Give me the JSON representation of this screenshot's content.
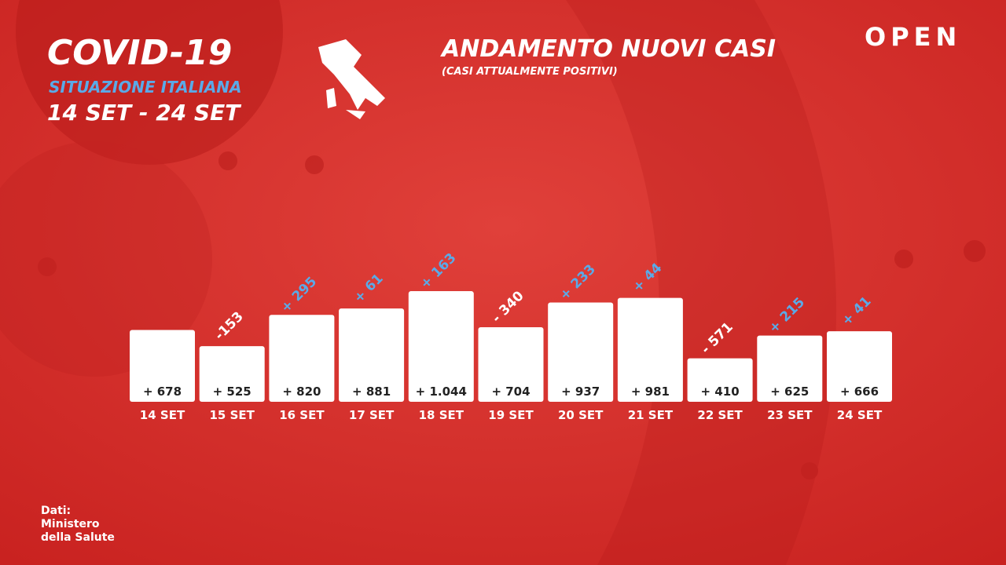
{
  "chart_data": {
    "type": "bar",
    "title": "ANDAMENTO NUOVI CASI",
    "subtitle": "(CASI ATTUALMENTE POSITIVI)",
    "header": {
      "title": "COVID-19",
      "subtitle": "SITUAZIONE ITALIANA",
      "period": "14 SET - 24 SET"
    },
    "brand": "OPEN",
    "source": [
      "Dati:",
      "Ministero",
      "della Salute"
    ],
    "categories": [
      "14 SET",
      "15 SET",
      "16 SET",
      "17 SET",
      "18 SET",
      "19 SET",
      "20 SET",
      "21 SET",
      "22 SET",
      "23 SET",
      "24 SET"
    ],
    "values": [
      678,
      525,
      820,
      881,
      1044,
      704,
      937,
      981,
      410,
      625,
      666
    ],
    "value_labels": [
      "+ 678",
      "+ 525",
      "+ 820",
      "+ 881",
      "+ 1.044",
      "+ 704",
      "+ 937",
      "+ 981",
      "+ 410",
      "+ 625",
      "+ 666"
    ],
    "color": "#ffffff",
    "changes": [
      null,
      -153,
      295,
      61,
      163,
      -340,
      233,
      44,
      -571,
      215,
      41
    ],
    "change_labels": [
      null,
      "-153",
      "+ 295",
      "+ 61",
      "+ 163",
      "- 340",
      "+ 233",
      "+ 44",
      "- 571",
      "+ 215",
      "+ 41"
    ],
    "positive_color": "#5aaae8",
    "negative_color": "#ffffff"
  }
}
